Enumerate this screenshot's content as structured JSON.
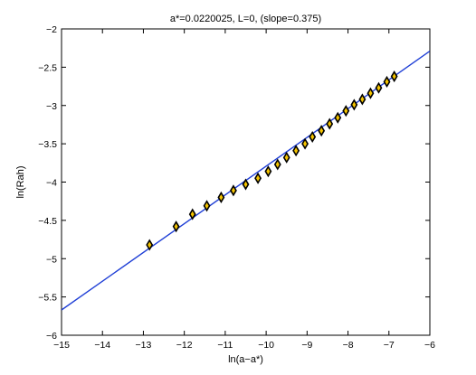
{
  "chart_data": {
    "type": "scatter",
    "title": "a*=0.0220025, L=0, (slope=0.375)",
    "xlabel": "ln(a−a*)",
    "ylabel": "ln(Rah)",
    "xlim": [
      -15,
      -6
    ],
    "ylim": [
      -6,
      -2
    ],
    "xticks": [
      -15,
      -14,
      -13,
      -12,
      -11,
      -10,
      -9,
      -8,
      -7,
      -6
    ],
    "yticks": [
      -6,
      -5.5,
      -5,
      -4.5,
      -4,
      -3.5,
      -3,
      -2.5,
      -2
    ],
    "xtick_labels": [
      "−15",
      "−14",
      "−13",
      "−12",
      "−11",
      "−10",
      "−9",
      "−8",
      "−7",
      "−6"
    ],
    "ytick_labels": [
      "−6",
      "−5.5",
      "−5",
      "−4.5",
      "−4",
      "−3.5",
      "−3",
      "−2.5",
      "−2"
    ],
    "grid": false,
    "series": [
      {
        "kind": "points",
        "marker": "diamond",
        "color": "#000000",
        "fill": "#f5c400",
        "x": [
          -12.85,
          -12.2,
          -11.8,
          -11.45,
          -11.1,
          -10.8,
          -10.5,
          -10.2,
          -9.95,
          -9.72,
          -9.5,
          -9.27,
          -9.05,
          -8.87,
          -8.65,
          -8.45,
          -8.25,
          -8.05,
          -7.85,
          -7.65,
          -7.45,
          -7.25,
          -7.05,
          -6.87
        ],
        "y": [
          -4.82,
          -4.58,
          -4.42,
          -4.31,
          -4.2,
          -4.11,
          -4.03,
          -3.95,
          -3.86,
          -3.77,
          -3.68,
          -3.59,
          -3.5,
          -3.41,
          -3.33,
          -3.24,
          -3.16,
          -3.07,
          -2.99,
          -2.92,
          -2.84,
          -2.77,
          -2.69,
          -2.62
        ]
      },
      {
        "kind": "line",
        "color": "#1f3fd6",
        "slope": 0.375,
        "x": [
          -15,
          -6
        ],
        "y": [
          -5.67,
          -2.29
        ]
      }
    ]
  }
}
